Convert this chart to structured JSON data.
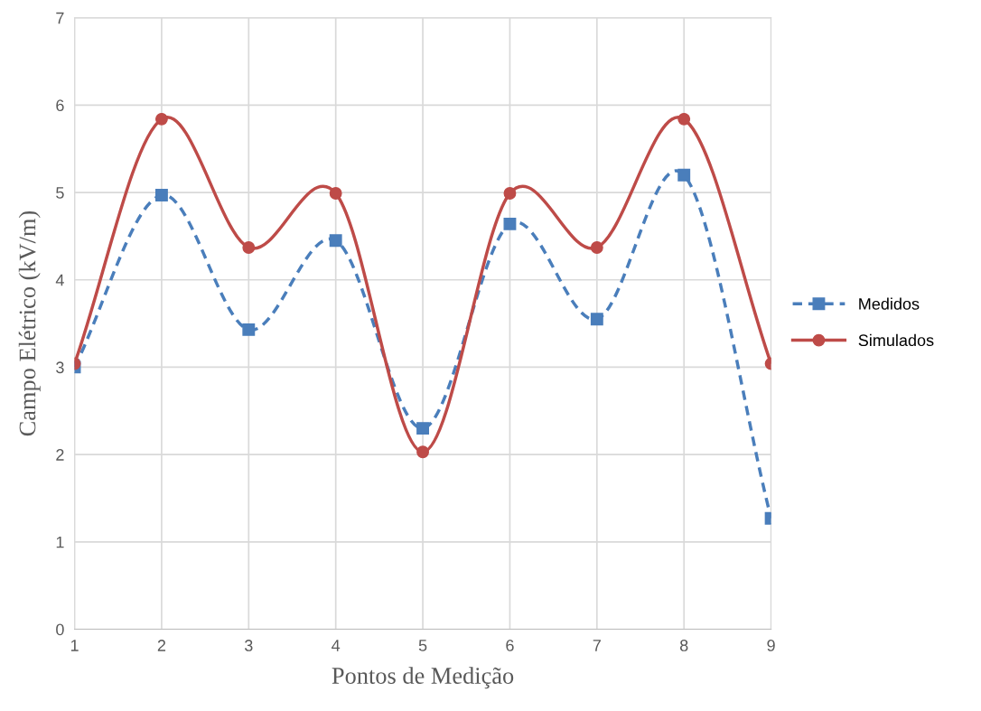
{
  "chart_data": {
    "type": "line",
    "xlabel": "Pontos de Medição",
    "ylabel": "Campo Elétrico (kV/m)",
    "x": [
      1,
      2,
      3,
      4,
      5,
      6,
      7,
      8,
      9
    ],
    "xlim": [
      1,
      9
    ],
    "xticks": [
      1,
      2,
      3,
      4,
      5,
      6,
      7,
      8,
      9
    ],
    "ylim": [
      0,
      7
    ],
    "yticks": [
      0,
      1,
      2,
      3,
      4,
      5,
      6,
      7
    ],
    "grid": true,
    "legend": "right",
    "series": [
      {
        "name": "Medidos",
        "color": "#4a7ebb",
        "marker": "square",
        "line_style": "dashed",
        "values": [
          3.0,
          4.97,
          3.43,
          4.45,
          2.3,
          4.64,
          3.55,
          5.2,
          1.27
        ]
      },
      {
        "name": "Simulados",
        "color": "#be4b48",
        "marker": "circle",
        "line_style": "solid",
        "values": [
          3.04,
          5.84,
          4.37,
          4.99,
          2.03,
          4.99,
          4.37,
          5.84,
          3.04
        ]
      }
    ]
  }
}
